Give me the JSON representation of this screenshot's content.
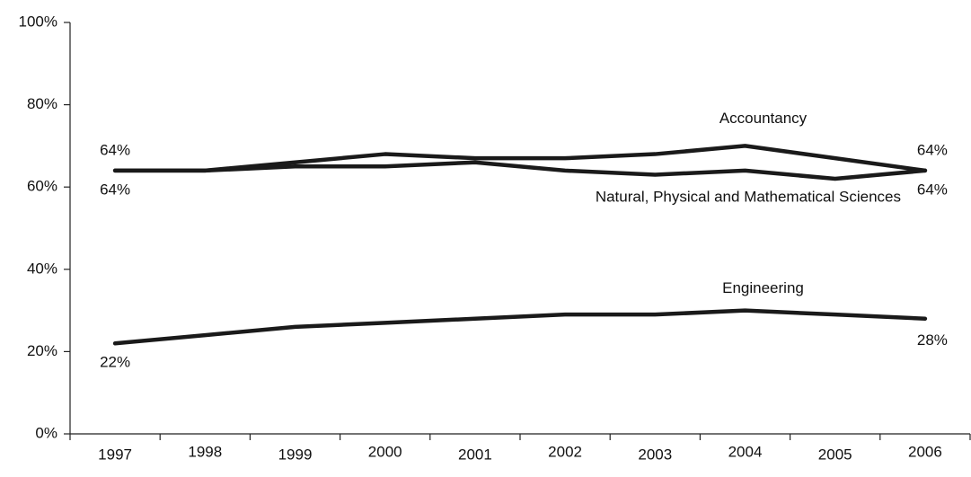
{
  "chart_data": {
    "type": "line",
    "categories": [
      "1997",
      "1998",
      "1999",
      "2000",
      "2001",
      "2002",
      "2003",
      "2004",
      "2005",
      "2006"
    ],
    "series": [
      {
        "name": "Accountancy",
        "color": "#1a1a1a",
        "values": [
          64,
          64,
          66,
          68,
          67,
          67,
          68,
          70,
          67,
          64
        ],
        "value_labels": [
          "64%",
          null,
          null,
          null,
          null,
          null,
          null,
          null,
          null,
          "64%"
        ]
      },
      {
        "name": "Natural, Physical and Mathematical Sciences",
        "color": "#1a1a1a",
        "values": [
          64,
          64,
          65,
          65,
          66,
          64,
          63,
          64,
          62,
          64
        ],
        "value_labels": [
          "64%",
          null,
          null,
          null,
          null,
          null,
          null,
          null,
          null,
          "64%"
        ]
      },
      {
        "name": "Engineering",
        "color": "#1a1a1a",
        "values": [
          22,
          24,
          26,
          27,
          28,
          29,
          29,
          30,
          29,
          28
        ],
        "value_labels": [
          "22%",
          null,
          null,
          null,
          null,
          null,
          null,
          null,
          null,
          "28%"
        ]
      }
    ],
    "ylim": [
      0,
      100
    ],
    "yticks": [
      {
        "value": 0,
        "label": "0%"
      },
      {
        "value": 20,
        "label": "20%"
      },
      {
        "value": 40,
        "label": "40%"
      },
      {
        "value": 60,
        "label": "60%"
      },
      {
        "value": 80,
        "label": "80%"
      },
      {
        "value": 100,
        "label": "100%"
      }
    ],
    "grid": false
  }
}
